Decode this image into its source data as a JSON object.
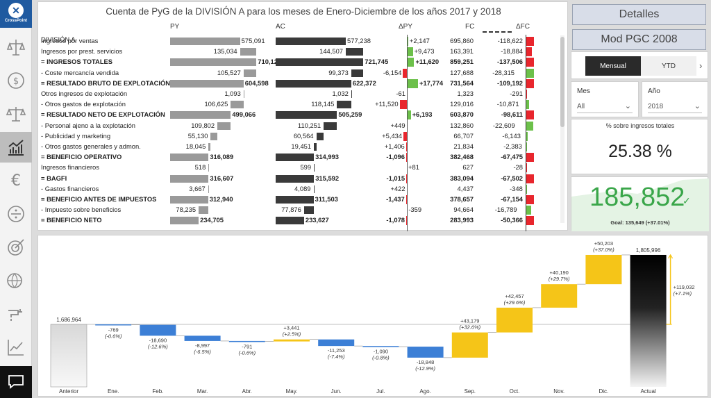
{
  "app": {
    "logo_label": "CrossPoint"
  },
  "sidebar": {
    "items": [
      {
        "name": "scales-document-icon"
      },
      {
        "name": "dollar-refresh-icon"
      },
      {
        "name": "balance-icon"
      },
      {
        "name": "bar-trend-icon",
        "active": true
      },
      {
        "name": "euro-icon"
      },
      {
        "name": "divide-icon"
      },
      {
        "name": "target-icon"
      },
      {
        "name": "globe-pin-icon"
      },
      {
        "name": "faucet-icon"
      },
      {
        "name": "line-chart-icon"
      }
    ]
  },
  "report": {
    "title": "Cuenta de PyG de la DIVISIÓN A para los meses de Enero-Diciembre de los años 2017 y 2018",
    "headers": {
      "py": "PY",
      "ac": "AC",
      "dpy": "ΔPY",
      "fc": "FC",
      "dfc": "ΔFC"
    },
    "section": "DIVISIÓN A",
    "rows": [
      {
        "label": "Ingresos por ventas",
        "bold": false,
        "py": "575,091",
        "pyv": 575091,
        "pyb": 0,
        "ac": "577,238",
        "acv": 577238,
        "acb": 0,
        "dpy": "+2,147",
        "dpyv": 2147,
        "fc": "695,860",
        "dfc": "-118,622",
        "dfcv": -118622
      },
      {
        "label": "Ingresos por prest. servicios",
        "bold": false,
        "py": "135,034",
        "pyv": 135034,
        "pyb": 575091,
        "ac": "144,507",
        "acv": 144507,
        "acb": 577238,
        "dpy": "+9,473",
        "dpyv": 9473,
        "fc": "163,391",
        "dfc": "-18,884",
        "dfcv": -18884
      },
      {
        "label": "= INGRESOS TOTALES",
        "bold": true,
        "py": "710,125",
        "pyv": 710125,
        "pyb": 0,
        "ac": "721,745",
        "acv": 721745,
        "acb": 0,
        "dpy": "+11,620",
        "dpyv": 11620,
        "fc": "859,251",
        "dfc": "-137,506",
        "dfcv": -137506
      },
      {
        "label": "- Coste mercancía vendida",
        "bold": false,
        "py": "105,527",
        "pyv": 105527,
        "pyb": 604598,
        "ac": "99,373",
        "acv": 99373,
        "acb": 622372,
        "dpy": "-6,154",
        "dpyv": -6154,
        "fc": "127,688",
        "dfc": "-28,315",
        "dfcv": 28315
      },
      {
        "label": "= RESULTADO BRUTO DE EXPLOTACIÓN",
        "bold": true,
        "py": "604,598",
        "pyv": 604598,
        "pyb": 0,
        "ac": "622,372",
        "acv": 622372,
        "acb": 0,
        "dpy": "+17,774",
        "dpyv": 17774,
        "fc": "731,564",
        "dfc": "-109,192",
        "dfcv": -109192
      },
      {
        "label": "Otros ingresos de explotación",
        "bold": false,
        "py": "1,093",
        "pyv": 1093,
        "pyb": 604598,
        "ac": "1,032",
        "acv": 1032,
        "acb": 622372,
        "dpy": "-61",
        "dpyv": -61,
        "fc": "1,323",
        "dfc": "-291",
        "dfcv": -291
      },
      {
        "label": "- Otros gastos de explotación",
        "bold": false,
        "py": "106,625",
        "pyv": 106625,
        "pyb": 499066,
        "ac": "118,145",
        "acv": 118145,
        "acb": 505259,
        "dpy": "+11,520",
        "dpyv": -11520,
        "fc": "129,016",
        "dfc": "-10,871",
        "dfcv": 10871
      },
      {
        "label": "= RESULTADO NETO DE EXPLOTACIÓN",
        "bold": true,
        "py": "499,066",
        "pyv": 499066,
        "pyb": 0,
        "ac": "505,259",
        "acv": 505259,
        "acb": 0,
        "dpy": "+6,193",
        "dpyv": 6193,
        "fc": "603,870",
        "dfc": "-98,611",
        "dfcv": -98611
      },
      {
        "label": "- Personal ajeno a la explotación",
        "bold": false,
        "py": "109,802",
        "pyv": 109802,
        "pyb": 389264,
        "ac": "110,251",
        "acv": 110251,
        "acb": 395008,
        "dpy": "+449",
        "dpyv": -449,
        "fc": "132,860",
        "dfc": "-22,609",
        "dfcv": 22609
      },
      {
        "label": "- Publicidad y marketing",
        "bold": false,
        "py": "55,130",
        "pyv": 55130,
        "pyb": 334134,
        "ac": "60,564",
        "acv": 60564,
        "acb": 334444,
        "dpy": "+5,434",
        "dpyv": -5434,
        "fc": "66,707",
        "dfc": "-6,143",
        "dfcv": 6143
      },
      {
        "label": "- Otros gastos generales y admon.",
        "bold": false,
        "py": "18,045",
        "pyv": 18045,
        "pyb": 316089,
        "ac": "19,451",
        "acv": 19451,
        "acb": 314993,
        "dpy": "+1,406",
        "dpyv": -1406,
        "fc": "21,834",
        "dfc": "-2,383",
        "dfcv": 2383
      },
      {
        "label": "= BENEFICIO OPERATIVO",
        "bold": true,
        "py": "316,089",
        "pyv": 316089,
        "pyb": 0,
        "ac": "314,993",
        "acv": 314993,
        "acb": 0,
        "dpy": "-1,096",
        "dpyv": -1096,
        "fc": "382,468",
        "dfc": "-67,475",
        "dfcv": -67475
      },
      {
        "label": "Ingresos financieros",
        "bold": false,
        "py": "518",
        "pyv": 518,
        "pyb": 316089,
        "ac": "599",
        "acv": 599,
        "acb": 314993,
        "dpy": "+81",
        "dpyv": 81,
        "fc": "627",
        "dfc": "-28",
        "dfcv": -28
      },
      {
        "label": "= BAGFI",
        "bold": true,
        "py": "316,607",
        "pyv": 316607,
        "pyb": 0,
        "ac": "315,592",
        "acv": 315592,
        "acb": 0,
        "dpy": "-1,015",
        "dpyv": -1015,
        "fc": "383,094",
        "dfc": "-67,502",
        "dfcv": -67502
      },
      {
        "label": "- Gastos financieros",
        "bold": false,
        "py": "3,667",
        "pyv": 3667,
        "pyb": 312940,
        "ac": "4,089",
        "acv": 4089,
        "acb": 311503,
        "dpy": "+422",
        "dpyv": -422,
        "fc": "4,437",
        "dfc": "-348",
        "dfcv": 348
      },
      {
        "label": "= BENEFICIO ANTES DE IMPUESTOS",
        "bold": true,
        "py": "312,940",
        "pyv": 312940,
        "pyb": 0,
        "ac": "311,503",
        "acv": 311503,
        "acb": 0,
        "dpy": "-1,437",
        "dpyv": -1437,
        "fc": "378,657",
        "dfc": "-67,154",
        "dfcv": -67154
      },
      {
        "label": "- Impuesto sobre beneficios",
        "bold": false,
        "py": "78,235",
        "pyv": 78235,
        "pyb": 234705,
        "ac": "77,876",
        "acv": 77876,
        "acb": 233627,
        "dpy": "-359",
        "dpyv": 359,
        "fc": "94,664",
        "dfc": "-16,789",
        "dfcv": 16789
      },
      {
        "label": "= BENEFICIO NETO",
        "bold": true,
        "py": "234,705",
        "pyv": 234705,
        "pyb": 0,
        "ac": "233,627",
        "acv": 233627,
        "acb": 0,
        "dpy": "-1,078",
        "dpyv": -1078,
        "fc": "283,993",
        "dfc": "-50,366",
        "dfcv": -50366
      }
    ]
  },
  "buttons": {
    "detalles": "Detalles",
    "mod": "Mod PGC 2008"
  },
  "mode": {
    "mensual": "Mensual",
    "ytd": "YTD",
    "selected": "Mensual"
  },
  "filters": {
    "mes": {
      "label": "Mes",
      "value": "All"
    },
    "ano": {
      "label": "Año",
      "value": "2018"
    }
  },
  "kpi": {
    "label": "% sobre ingresos totales",
    "value": "25.38 %"
  },
  "goal": {
    "value": "185,852",
    "goal_text": "Goal: 135,649 (+37.01%)"
  },
  "colors": {
    "py": "#9a9a9a",
    "ac": "#3a3a3a",
    "pos": "#6cc04a",
    "neg": "#e8262d",
    "wf_pos": "#f5c518",
    "wf_neg": "#3c7fd6",
    "goal": "#3aa64a"
  },
  "chart_data": {
    "type": "waterfall",
    "categories": [
      "Anterior",
      "Ene.",
      "Feb.",
      "Mar.",
      "Abr.",
      "May.",
      "Jun.",
      "Jul.",
      "Ago.",
      "Sep.",
      "Oct.",
      "Nov.",
      "Dic.",
      "Actual"
    ],
    "start": 1686964,
    "start_label": "1,686,964",
    "end": 1805996,
    "end_label": "1,805,996",
    "deltas": [
      -769,
      -18690,
      -8997,
      -791,
      3441,
      -11253,
      -1090,
      -18848,
      43179,
      42457,
      40190,
      50203
    ],
    "delta_labels": [
      "-769",
      "-18,690",
      "-8,997",
      "-791",
      "+3,441",
      "-11,253",
      "-1,090",
      "-18,848",
      "+43,179",
      "+42,457",
      "+40,190",
      "+50,203"
    ],
    "pct_labels": [
      "(-0.6%)",
      "(-12.6%)",
      "(-6.5%)",
      "(-0.6%)",
      "(+2.5%)",
      "(-7.4%)",
      "(-0.8%)",
      "(-12.9%)",
      "(+32.6%)",
      "(+29.6%)",
      "(+29.7%)",
      "(+37.0%)"
    ],
    "total_delta_label": "+119,032",
    "total_pct_label": "(+7.1%)"
  }
}
